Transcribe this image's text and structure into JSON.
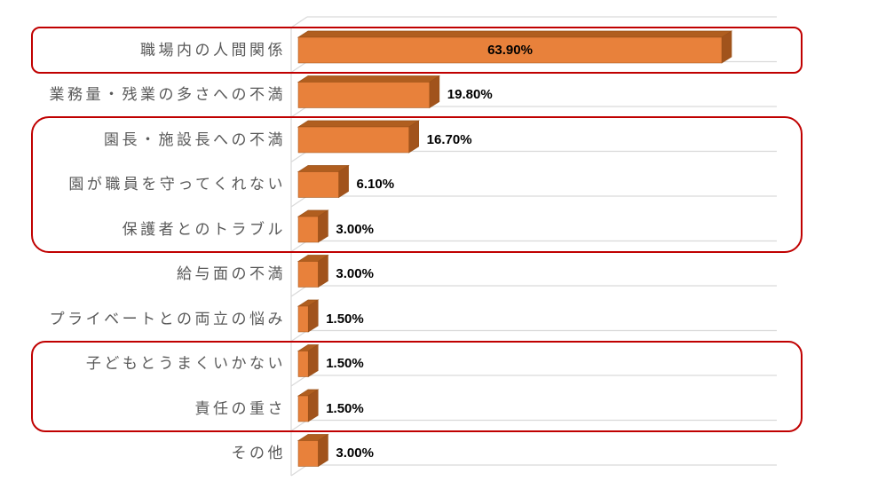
{
  "chart_data": {
    "type": "bar",
    "style": "3d-horizontal-bar",
    "orientation": "horizontal",
    "title": "",
    "xlabel": "",
    "ylabel": "",
    "unit": "%",
    "legend": false,
    "axis_ticks_visible": false,
    "categories": [
      "職場内の人間関係",
      "業務量・残業の多さへの不満",
      "園長・施設長への不満",
      "園が職員を守ってくれない",
      "保護者とのトラブル",
      "給与面の不満",
      "プライベートとの両立の悩み",
      "子どもとうまくいかない",
      "責任の重さ",
      "その他"
    ],
    "values": [
      63.9,
      19.8,
      16.7,
      6.1,
      3.0,
      3.0,
      1.5,
      1.5,
      1.5,
      3.0
    ],
    "value_labels": [
      "63.90%",
      "19.80%",
      "16.70%",
      "6.10%",
      "3.00%",
      "3.00%",
      "1.50%",
      "1.50%",
      "1.50%",
      "3.00%"
    ],
    "colors": {
      "bar_front": "#E8813B",
      "bar_top": "#B05E1F",
      "bar_side": "#A1531C",
      "bar_edge": "#9A5118",
      "frame_lines": "#D9D9D9",
      "category_text": "#595959",
      "value_text": "#000000",
      "background": "#FFFFFF"
    }
  },
  "highlights": {
    "color": "#C00000",
    "groups": [
      {
        "category_indices": [
          0
        ],
        "categories": [
          "職場内の人間関係"
        ]
      },
      {
        "category_indices": [
          2,
          3,
          4
        ],
        "categories": [
          "園長・施設長への不満",
          "園が職員を守ってくれない",
          "保護者とのトラブル"
        ]
      },
      {
        "category_indices": [
          7,
          8
        ],
        "categories": [
          "子どもとうまくいかない",
          "責任の重さ"
        ]
      }
    ]
  }
}
